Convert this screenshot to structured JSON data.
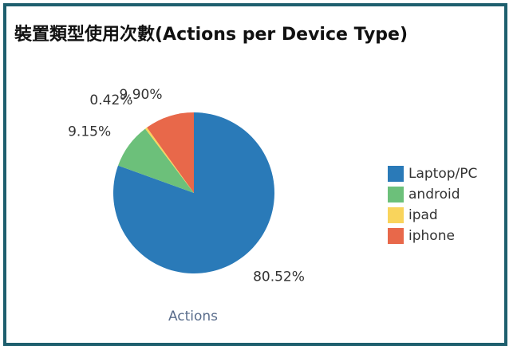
{
  "chart_data": {
    "type": "pie",
    "title": "裝置類型使用次數(Actions per Device Type)",
    "series_name": "Actions",
    "categories": [
      "Laptop/PC",
      "android",
      "ipad",
      "iphone"
    ],
    "values": [
      80.52,
      9.15,
      0.42,
      9.9
    ],
    "value_labels": [
      "80.52%",
      "9.15%",
      "0.42%",
      "9.90%"
    ],
    "colors": [
      "#2a7ab8",
      "#6cc07a",
      "#f9d45c",
      "#e8684a"
    ],
    "legend": "right"
  }
}
